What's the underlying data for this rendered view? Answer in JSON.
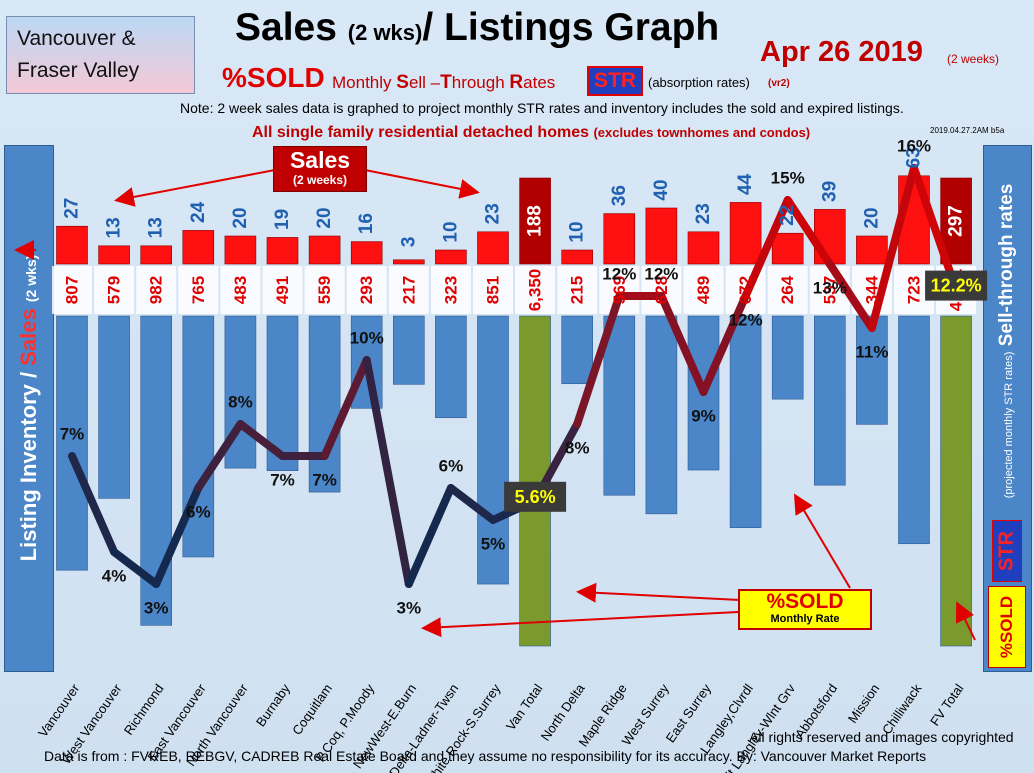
{
  "header": {
    "region_line1": "Vancouver &",
    "region_line2": "Fraser Valley",
    "title_main": "Sales ",
    "title_small": "(2 wks)",
    "title_rest": "/ Listings Graph",
    "date": "Apr 26  2019",
    "date_note": "(2 weeks)",
    "pct_sold": "%SOLD",
    "msr_prefix": "Monthly ",
    "msr_s": "S",
    "msr_ell": "ell –",
    "msr_t": "T",
    "msr_hrough": "hrough ",
    "msr_r": "R",
    "msr_ates": "ates",
    "str": "STR",
    "absorption": "(absorption rates)",
    "version": "(vr2)",
    "note": "Note: 2 week sales data is graphed to project monthly STR rates and inventory includes the sold and expired listings.",
    "subtitle_main": "All single family residential detached homes ",
    "subtitle_small": "(excludes townhomes and condos)",
    "stamp": "2019.04.27.2AM b5a"
  },
  "axes": {
    "left_inventory": "Listing Inventory / ",
    "left_sales": "Sales",
    "left_small": "(2  wks)",
    "right_main": "Sell-through rates",
    "right_small": "(projected monthly STR rates)",
    "right_str": "STR",
    "right_sold": "%SOLD"
  },
  "callouts": {
    "sales_big": "Sales",
    "sales_small": "(2 weeks)",
    "sold_big": "%SOLD",
    "sold_small": "Monthly Rate"
  },
  "footer": {
    "rights": "All rights reserved and  images copyrighted",
    "source": "Data is from : FVREB, REBGV, CADREB Real Estate Board and they assume no responsibility for its accuracy. By: Vancouver Market Reports"
  },
  "colors": {
    "inventory_bar": "#4a86c8",
    "sales_bar": "#ff1010",
    "total_inventory_bar": "#7a9a2e",
    "total_sales_bar": "#b00000",
    "line_low": "#15294f",
    "line_high": "#e00000",
    "value_blue": "#2060b0",
    "value_red": "#e00000"
  },
  "chart_data": {
    "type": "bar",
    "title": "Sales (2 wks)/ Listings Graph",
    "categories": [
      "Vancouver",
      "West Vancouver",
      "Richmond",
      "East Vancouver",
      "North Vancouver",
      "Burnaby",
      "Coquitlam",
      "P.Coq, P.Moody",
      "NewWest-E.Burn",
      "Delta-Ladner-Twsn",
      "White Rock-S.Surrey",
      "Van Total",
      "North Delta",
      "Maple Ridge",
      "West Surrey",
      "East Surrey",
      "Langley,Clvrdl",
      "Ft Langley-Wlnt Grv",
      "Abbotsford",
      "Mission",
      "Chilliwack",
      "FV Total"
    ],
    "series": [
      {
        "name": "Sales (2 weeks)",
        "values": [
          27,
          13,
          13,
          24,
          20,
          19,
          20,
          16,
          3,
          10,
          23,
          188,
          10,
          36,
          40,
          23,
          44,
          22,
          39,
          20,
          63,
          297
        ]
      },
      {
        "name": "Listing Inventory",
        "values": [
          807,
          579,
          982,
          765,
          483,
          491,
          559,
          293,
          217,
          323,
          851,
          6350,
          215,
          569,
          628,
          489,
          672,
          264,
          537,
          344,
          723,
          4441
        ],
        "labels": [
          "807",
          "579",
          "982",
          "765",
          "483",
          "491",
          "559",
          "293",
          "217",
          "323",
          "851",
          "6,350",
          "215",
          "569",
          "628",
          "489",
          "672",
          "264",
          "537",
          "344",
          "723",
          "4,441"
        ]
      },
      {
        "name": "%SOLD Monthly Rate",
        "values": [
          7,
          4,
          3,
          6,
          8,
          7,
          7,
          10,
          3,
          6,
          5,
          5.6,
          8,
          12,
          12,
          9,
          12,
          15,
          13,
          11,
          16,
          12.2
        ],
        "labels": [
          "7%",
          "4%",
          "3%",
          "6%",
          "8%",
          "7%",
          "7%",
          "10%",
          "3%",
          "6%",
          "5%",
          "5.6%",
          "8%",
          "12%",
          "12%",
          "9%",
          "12%",
          "15%",
          "13%",
          "11%",
          "16%",
          "12.2%"
        ]
      }
    ],
    "totals": [
      "Van Total",
      "FV Total"
    ],
    "ylim_sold_pct": [
      0,
      20
    ]
  }
}
